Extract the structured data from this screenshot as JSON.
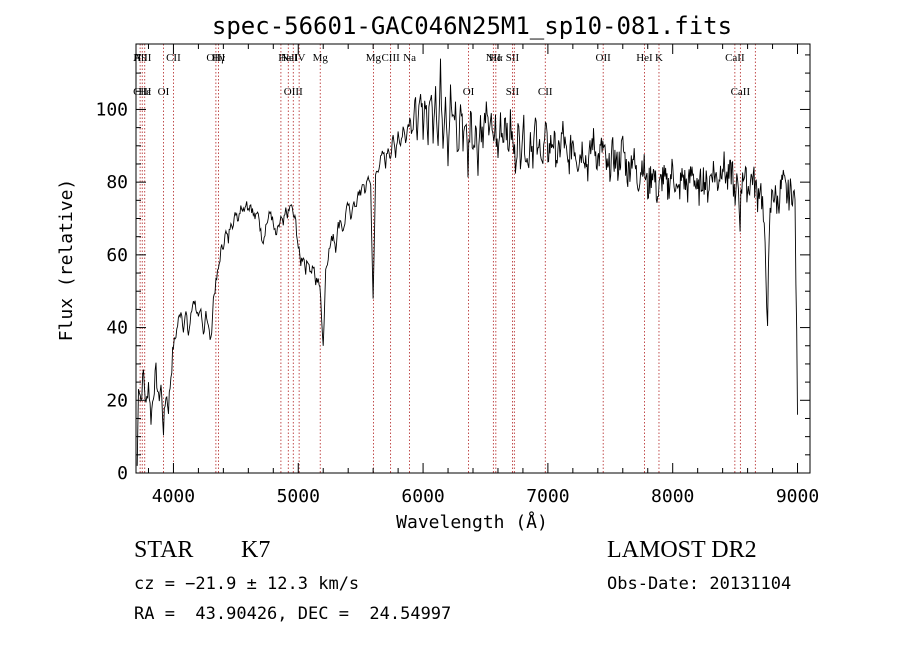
{
  "chart_data": {
    "type": "line",
    "title": "spec-56601-GAC046N25M1_sp10-081.fits",
    "xlabel": "Wavelength (Å)",
    "ylabel": "Flux (relative)",
    "xlim": [
      3700,
      9100
    ],
    "ylim": [
      0,
      118
    ],
    "xticks": [
      4000,
      5000,
      6000,
      7000,
      8000,
      9000
    ],
    "yticks": [
      0,
      20,
      40,
      60,
      80,
      100
    ],
    "grid": false,
    "series": [
      {
        "points": [
          [
            3710,
            2
          ],
          [
            3720,
            25
          ],
          [
            3740,
            20
          ],
          [
            3760,
            28
          ],
          [
            3780,
            18
          ],
          [
            3800,
            25
          ],
          [
            3820,
            15
          ],
          [
            3840,
            22
          ],
          [
            3860,
            28
          ],
          [
            3880,
            20
          ],
          [
            3900,
            24
          ],
          [
            3920,
            12
          ],
          [
            3940,
            22
          ],
          [
            3960,
            18
          ],
          [
            3980,
            27
          ],
          [
            4000,
            35
          ],
          [
            4020,
            38
          ],
          [
            4040,
            42
          ],
          [
            4060,
            45
          ],
          [
            4080,
            40
          ],
          [
            4100,
            44
          ],
          [
            4120,
            38
          ],
          [
            4140,
            43
          ],
          [
            4160,
            48
          ],
          [
            4180,
            46
          ],
          [
            4200,
            42
          ],
          [
            4220,
            44
          ],
          [
            4240,
            38
          ],
          [
            4260,
            45
          ],
          [
            4280,
            40
          ],
          [
            4300,
            36
          ],
          [
            4320,
            48
          ],
          [
            4340,
            52
          ],
          [
            4360,
            56
          ],
          [
            4380,
            61
          ],
          [
            4400,
            63
          ],
          [
            4420,
            66
          ],
          [
            4440,
            64
          ],
          [
            4460,
            70
          ],
          [
            4480,
            68
          ],
          [
            4500,
            72
          ],
          [
            4520,
            70
          ],
          [
            4540,
            74
          ],
          [
            4560,
            72
          ],
          [
            4580,
            75
          ],
          [
            4600,
            73
          ],
          [
            4620,
            74
          ],
          [
            4640,
            71
          ],
          [
            4660,
            70
          ],
          [
            4680,
            72
          ],
          [
            4700,
            66
          ],
          [
            4720,
            64
          ],
          [
            4740,
            68
          ],
          [
            4760,
            70
          ],
          [
            4780,
            72
          ],
          [
            4800,
            68
          ],
          [
            4820,
            65
          ],
          [
            4840,
            67
          ],
          [
            4860,
            70
          ],
          [
            4880,
            68
          ],
          [
            4900,
            72
          ],
          [
            4920,
            71
          ],
          [
            4940,
            74
          ],
          [
            4960,
            71
          ],
          [
            4980,
            69
          ],
          [
            5000,
            62
          ],
          [
            5020,
            58
          ],
          [
            5040,
            60
          ],
          [
            5060,
            56
          ],
          [
            5080,
            59
          ],
          [
            5100,
            55
          ],
          [
            5120,
            57
          ],
          [
            5140,
            52
          ],
          [
            5160,
            54
          ],
          [
            5180,
            48
          ],
          [
            5200,
            35
          ],
          [
            5220,
            56
          ],
          [
            5240,
            60
          ],
          [
            5260,
            63
          ],
          [
            5280,
            66
          ],
          [
            5300,
            62
          ],
          [
            5320,
            68
          ],
          [
            5340,
            70
          ],
          [
            5360,
            66
          ],
          [
            5380,
            71
          ],
          [
            5400,
            74
          ],
          [
            5420,
            70
          ],
          [
            5440,
            75
          ],
          [
            5460,
            72
          ],
          [
            5480,
            78
          ],
          [
            5500,
            76
          ],
          [
            5520,
            80
          ],
          [
            5540,
            77
          ],
          [
            5560,
            82
          ],
          [
            5580,
            79
          ],
          [
            5600,
            47
          ],
          [
            5620,
            82
          ],
          [
            5640,
            84
          ],
          [
            5660,
            86
          ],
          [
            5680,
            88
          ],
          [
            5700,
            85
          ],
          [
            5720,
            90
          ],
          [
            5740,
            87
          ],
          [
            5760,
            92
          ],
          [
            5780,
            88
          ],
          [
            5800,
            94
          ],
          [
            5820,
            90
          ],
          [
            5840,
            95
          ],
          [
            5860,
            92
          ],
          [
            5880,
            96
          ],
          [
            5900,
            98
          ],
          [
            5920,
            95
          ],
          [
            5940,
            100
          ],
          [
            5960,
            94
          ],
          [
            5980,
            102
          ],
          [
            6000,
            96
          ],
          [
            6020,
            104
          ],
          [
            6040,
            92
          ],
          [
            6060,
            106
          ],
          [
            6080,
            95
          ],
          [
            6100,
            108
          ],
          [
            6120,
            90
          ],
          [
            6140,
            110
          ],
          [
            6160,
            93
          ],
          [
            6180,
            105
          ],
          [
            6200,
            88
          ],
          [
            6220,
            104
          ],
          [
            6240,
            95
          ],
          [
            6260,
            100
          ],
          [
            6280,
            86
          ],
          [
            6300,
            102
          ],
          [
            6320,
            92
          ],
          [
            6340,
            98
          ],
          [
            6360,
            84
          ],
          [
            6380,
            100
          ],
          [
            6400,
            90
          ],
          [
            6420,
            96
          ],
          [
            6440,
            86
          ],
          [
            6460,
            98
          ],
          [
            6480,
            90
          ],
          [
            6500,
            100
          ],
          [
            6520,
            94
          ],
          [
            6540,
            98
          ],
          [
            6560,
            90
          ],
          [
            6580,
            96
          ],
          [
            6600,
            86
          ],
          [
            6620,
            98
          ],
          [
            6640,
            92
          ],
          [
            6660,
            100
          ],
          [
            6680,
            88
          ],
          [
            6700,
            96
          ],
          [
            6720,
            90
          ],
          [
            6740,
            86
          ],
          [
            6760,
            94
          ],
          [
            6780,
            88
          ],
          [
            6800,
            96
          ],
          [
            6820,
            90
          ],
          [
            6840,
            84
          ],
          [
            6860,
            94
          ],
          [
            6880,
            88
          ],
          [
            6900,
            96
          ],
          [
            6920,
            86
          ],
          [
            6940,
            92
          ],
          [
            6960,
            85
          ],
          [
            6980,
            94
          ],
          [
            7000,
            88
          ],
          [
            7040,
            92
          ],
          [
            7080,
            86
          ],
          [
            7120,
            94
          ],
          [
            7160,
            84
          ],
          [
            7200,
            92
          ],
          [
            7240,
            86
          ],
          [
            7280,
            90
          ],
          [
            7320,
            84
          ],
          [
            7360,
            92
          ],
          [
            7400,
            86
          ],
          [
            7440,
            90
          ],
          [
            7480,
            82
          ],
          [
            7520,
            88
          ],
          [
            7560,
            84
          ],
          [
            7600,
            90
          ],
          [
            7640,
            82
          ],
          [
            7680,
            88
          ],
          [
            7720,
            80
          ],
          [
            7760,
            86
          ],
          [
            7800,
            78
          ],
          [
            7840,
            84
          ],
          [
            7880,
            76
          ],
          [
            7920,
            82
          ],
          [
            7960,
            78
          ],
          [
            8000,
            84
          ],
          [
            8040,
            76
          ],
          [
            8080,
            82
          ],
          [
            8120,
            78
          ],
          [
            8160,
            84
          ],
          [
            8200,
            76
          ],
          [
            8240,
            82
          ],
          [
            8280,
            78
          ],
          [
            8320,
            84
          ],
          [
            8360,
            80
          ],
          [
            8400,
            86
          ],
          [
            8440,
            80
          ],
          [
            8480,
            84
          ],
          [
            8500,
            72
          ],
          [
            8520,
            82
          ],
          [
            8540,
            70
          ],
          [
            8560,
            84
          ],
          [
            8600,
            78
          ],
          [
            8640,
            82
          ],
          [
            8680,
            76
          ],
          [
            8700,
            80
          ],
          [
            8720,
            74
          ],
          [
            8740,
            60
          ],
          [
            8760,
            44
          ],
          [
            8780,
            70
          ],
          [
            8800,
            78
          ],
          [
            8840,
            74
          ],
          [
            8880,
            80
          ],
          [
            8920,
            76
          ],
          [
            8960,
            78
          ],
          [
            8980,
            74
          ],
          [
            9000,
            16
          ]
        ]
      }
    ],
    "line_markers": [
      {
        "x": 3733,
        "top": "H9",
        "bottom": ""
      },
      {
        "x": 3750,
        "top": "AlII",
        "bottom": "CIII"
      },
      {
        "x": 3770,
        "top": "",
        "bottom": "Hε"
      },
      {
        "x": 3920,
        "top": "",
        "bottom": "OI"
      },
      {
        "x": 4000,
        "top": "CII",
        "bottom": ""
      },
      {
        "x": 4340,
        "top": "OIII",
        "bottom": ""
      },
      {
        "x": 4361,
        "top": "Hγ",
        "bottom": ""
      },
      {
        "x": 4861,
        "top": "",
        "bottom": ""
      },
      {
        "x": 4920,
        "top": "HeII",
        "bottom": ""
      },
      {
        "x": 4960,
        "top": "NeIV",
        "bottom": "OIII"
      },
      {
        "x": 5007,
        "top": "",
        "bottom": ""
      },
      {
        "x": 5176,
        "top": "Mg",
        "bottom": ""
      },
      {
        "x": 5602,
        "top": "Mg",
        "bottom": ""
      },
      {
        "x": 5740,
        "top": "CIII",
        "bottom": ""
      },
      {
        "x": 5892,
        "top": "Na",
        "bottom": ""
      },
      {
        "x": 6364,
        "top": "",
        "bottom": "OI"
      },
      {
        "x": 6563,
        "top": "NII",
        "bottom": ""
      },
      {
        "x": 6583,
        "top": "Hα",
        "bottom": ""
      },
      {
        "x": 6716,
        "top": "SII",
        "bottom": "SII"
      },
      {
        "x": 6731,
        "top": "",
        "bottom": ""
      },
      {
        "x": 6979,
        "top": "",
        "bottom": "CII"
      },
      {
        "x": 7443,
        "top": "OII",
        "bottom": ""
      },
      {
        "x": 7774,
        "top": "HeI",
        "bottom": ""
      },
      {
        "x": 7890,
        "top": "K",
        "bottom": ""
      },
      {
        "x": 8498,
        "top": "CaII",
        "bottom": ""
      },
      {
        "x": 8542,
        "top": "",
        "bottom": "CaII"
      },
      {
        "x": 8662,
        "top": "",
        "bottom": ""
      }
    ]
  },
  "footer": {
    "object_class": "STAR",
    "subclass": "K7",
    "cz": "cz = −21.9 ± 12.3 km/s",
    "coords": "RA =  43.90426, DEC =  24.54997",
    "survey": "LAMOST DR2",
    "obs_date": "Obs-Date: 20131104"
  }
}
